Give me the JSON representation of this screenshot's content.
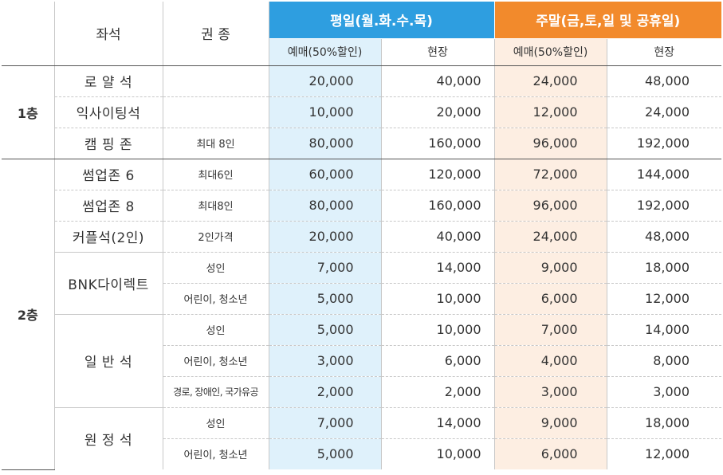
{
  "header": {
    "seat": "좌석",
    "ticket": "권 종",
    "weekday": "평일(월.화.수.목)",
    "weekend": "주말(금,토,일 및 공휴일)",
    "advance": "예매(50%할인)",
    "onsite": "현장"
  },
  "floors": [
    {
      "label": "1층"
    },
    {
      "label": "2층"
    }
  ],
  "rows": [
    {
      "seat": "로 얄 석",
      "ticket": "",
      "wd_adv": "20,000",
      "wd_on": "40,000",
      "we_adv": "24,000",
      "we_on": "48,000"
    },
    {
      "seat": "익사이팅석",
      "ticket": "",
      "wd_adv": "10,000",
      "wd_on": "20,000",
      "we_adv": "12,000",
      "we_on": "24,000"
    },
    {
      "seat": "캠 핑 존",
      "ticket": "최대 8인",
      "wd_adv": "80,000",
      "wd_on": "160,000",
      "we_adv": "96,000",
      "we_on": "192,000"
    },
    {
      "seat": "썸업존 6",
      "ticket": "최대6인",
      "wd_adv": "60,000",
      "wd_on": "120,000",
      "we_adv": "72,000",
      "we_on": "144,000"
    },
    {
      "seat": "썸업존 8",
      "ticket": "최대8인",
      "wd_adv": "80,000",
      "wd_on": "160,000",
      "we_adv": "96,000",
      "we_on": "192,000"
    },
    {
      "seat": "커플석(2인)",
      "ticket": "2인가격",
      "wd_adv": "20,000",
      "wd_on": "40,000",
      "we_adv": "24,000",
      "we_on": "48,000"
    },
    {
      "seat": "BNK다이렉트",
      "ticket": "성인",
      "wd_adv": "7,000",
      "wd_on": "14,000",
      "we_adv": "9,000",
      "we_on": "18,000"
    },
    {
      "seat": "",
      "ticket": "어린이, 청소년",
      "wd_adv": "5,000",
      "wd_on": "10,000",
      "we_adv": "6,000",
      "we_on": "12,000"
    },
    {
      "seat": "일 반 석",
      "ticket": "성인",
      "wd_adv": "5,000",
      "wd_on": "10,000",
      "we_adv": "7,000",
      "we_on": "14,000"
    },
    {
      "seat": "",
      "ticket": "어린이, 청소년",
      "wd_adv": "3,000",
      "wd_on": "6,000",
      "we_adv": "4,000",
      "we_on": "8,000"
    },
    {
      "seat": "",
      "ticket": "경로, 장애인, 국가유공",
      "wd_adv": "2,000",
      "wd_on": "2,000",
      "we_adv": "3,000",
      "we_on": "3,000"
    },
    {
      "seat": "원 정 석",
      "ticket": "성인",
      "wd_adv": "7,000",
      "wd_on": "14,000",
      "we_adv": "9,000",
      "we_on": "18,000"
    },
    {
      "seat": "",
      "ticket": "어린이, 청소년",
      "wd_adv": "5,000",
      "wd_on": "10,000",
      "we_adv": "6,000",
      "we_on": "12,000"
    }
  ],
  "colors": {
    "weekday_header": "#2e9ee0",
    "weekday_bg": "#dff1fb",
    "weekend_header": "#f28a2c",
    "weekend_bg": "#fdeee2"
  }
}
